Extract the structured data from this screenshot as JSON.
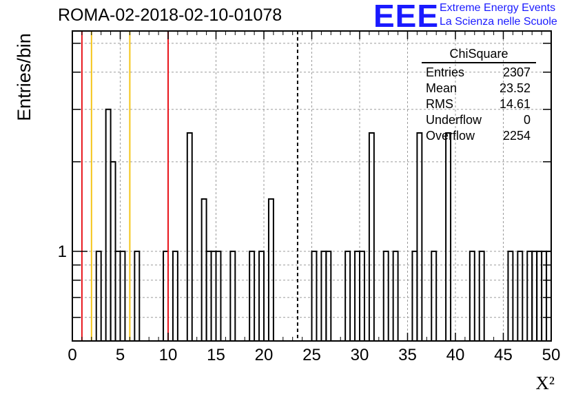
{
  "title": "ROMA-02-2018-02-10-01078",
  "logo": {
    "mark": "EEE",
    "line1": "Extreme Energy Events",
    "line2": "La Scienza nelle Scuole",
    "color": "#1a1aff"
  },
  "stats": {
    "name": "ChiSquare",
    "rows": [
      {
        "label": "Entries",
        "value": "2307"
      },
      {
        "label": "Mean",
        "value": "23.52"
      },
      {
        "label": "RMS",
        "value": "14.61"
      },
      {
        "label": "Underflow",
        "value": "0"
      },
      {
        "label": "Overflow",
        "value": "2254"
      }
    ]
  },
  "chart_data": {
    "type": "bar",
    "style": "step histogram",
    "xlabel": "X²",
    "ylabel": "Entries/bin",
    "xlim": [
      0,
      50
    ],
    "ylim": [
      0.5,
      5.5
    ],
    "log_y": true,
    "grid": true,
    "x_ticks": [
      "0",
      "5",
      "10",
      "15",
      "20",
      "25",
      "30",
      "35",
      "40",
      "45",
      "50"
    ],
    "y_ticks": [
      "1"
    ],
    "bin_width": 0.5,
    "bins": [
      {
        "x": 2.5,
        "y": 1
      },
      {
        "x": 3.5,
        "y": 3
      },
      {
        "x": 4.0,
        "y": 2
      },
      {
        "x": 4.5,
        "y": 1
      },
      {
        "x": 5.0,
        "y": 1
      },
      {
        "x": 6.5,
        "y": 1
      },
      {
        "x": 9.5,
        "y": 1
      },
      {
        "x": 10.5,
        "y": 1
      },
      {
        "x": 12.0,
        "y": 2.5
      },
      {
        "x": 13.5,
        "y": 1.5
      },
      {
        "x": 14.0,
        "y": 1
      },
      {
        "x": 14.5,
        "y": 1
      },
      {
        "x": 15.0,
        "y": 1
      },
      {
        "x": 16.5,
        "y": 1
      },
      {
        "x": 18.5,
        "y": 1
      },
      {
        "x": 19.5,
        "y": 1
      },
      {
        "x": 20.5,
        "y": 1.5
      },
      {
        "x": 25.0,
        "y": 1
      },
      {
        "x": 26.0,
        "y": 1
      },
      {
        "x": 26.5,
        "y": 1
      },
      {
        "x": 28.5,
        "y": 1
      },
      {
        "x": 29.5,
        "y": 1
      },
      {
        "x": 30.0,
        "y": 1
      },
      {
        "x": 31.0,
        "y": 2.5
      },
      {
        "x": 32.5,
        "y": 1
      },
      {
        "x": 33.5,
        "y": 1
      },
      {
        "x": 35.5,
        "y": 1
      },
      {
        "x": 36.0,
        "y": 2.5
      },
      {
        "x": 37.5,
        "y": 1
      },
      {
        "x": 39.0,
        "y": 2.5
      },
      {
        "x": 41.5,
        "y": 1
      },
      {
        "x": 42.5,
        "y": 1
      },
      {
        "x": 45.5,
        "y": 1
      },
      {
        "x": 46.5,
        "y": 1
      },
      {
        "x": 47.5,
        "y": 1
      },
      {
        "x": 48.0,
        "y": 1
      },
      {
        "x": 48.5,
        "y": 1
      },
      {
        "x": 49.0,
        "y": 1
      },
      {
        "x": 49.5,
        "y": 1
      }
    ],
    "reference_lines": [
      {
        "x": 1,
        "color": "#e8141b",
        "style": "solid"
      },
      {
        "x": 2,
        "color": "#f5c518",
        "style": "solid"
      },
      {
        "x": 6,
        "color": "#f5c518",
        "style": "solid"
      },
      {
        "x": 10,
        "color": "#e8141b",
        "style": "solid"
      },
      {
        "x": 23.52,
        "color": "#000000",
        "style": "dashed"
      }
    ]
  }
}
